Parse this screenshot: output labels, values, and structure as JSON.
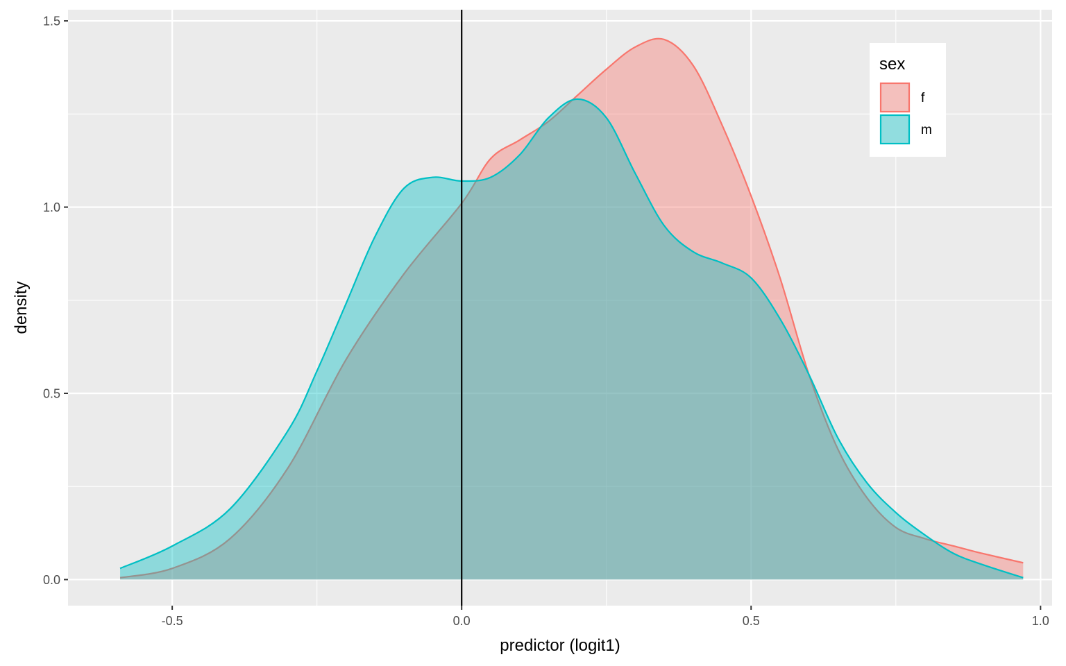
{
  "chart_data": {
    "type": "area",
    "xlabel": "predictor (logit1)",
    "ylabel": "density",
    "xlim": [
      -0.68,
      1.02
    ],
    "ylim": [
      -0.07,
      1.53
    ],
    "x_ticks": [
      -0.5,
      0.0,
      0.5,
      1.0
    ],
    "x_tick_labels": [
      "-0.5",
      "0.0",
      "0.5",
      "1.0"
    ],
    "y_ticks": [
      0.0,
      0.5,
      1.0,
      1.5
    ],
    "y_tick_labels": [
      "0.0",
      "0.5",
      "1.0",
      "1.5"
    ],
    "grid": true,
    "vline": 0.0,
    "legend": {
      "title": "sex",
      "placement": "top-right"
    },
    "series": [
      {
        "name": "f",
        "color": "#F8766D",
        "x": [
          -0.59,
          -0.5,
          -0.4,
          -0.3,
          -0.2,
          -0.1,
          0.0,
          0.05,
          0.1,
          0.15,
          0.2,
          0.25,
          0.3,
          0.35,
          0.4,
          0.45,
          0.5,
          0.55,
          0.6,
          0.65,
          0.7,
          0.75,
          0.8,
          0.85,
          0.9,
          0.97
        ],
        "y": [
          0.005,
          0.03,
          0.11,
          0.3,
          0.59,
          0.82,
          1.01,
          1.13,
          1.18,
          1.23,
          1.3,
          1.37,
          1.43,
          1.45,
          1.38,
          1.22,
          1.03,
          0.81,
          0.55,
          0.35,
          0.22,
          0.14,
          0.11,
          0.09,
          0.07,
          0.045
        ]
      },
      {
        "name": "m",
        "color": "#00BFC4",
        "x": [
          -0.59,
          -0.5,
          -0.4,
          -0.3,
          -0.25,
          -0.2,
          -0.15,
          -0.1,
          -0.05,
          0.0,
          0.05,
          0.1,
          0.15,
          0.2,
          0.25,
          0.3,
          0.35,
          0.4,
          0.45,
          0.5,
          0.55,
          0.6,
          0.65,
          0.7,
          0.75,
          0.8,
          0.85,
          0.9,
          0.97
        ],
        "y": [
          0.03,
          0.09,
          0.19,
          0.4,
          0.56,
          0.74,
          0.92,
          1.05,
          1.08,
          1.07,
          1.08,
          1.14,
          1.24,
          1.29,
          1.24,
          1.09,
          0.95,
          0.88,
          0.85,
          0.81,
          0.7,
          0.55,
          0.38,
          0.26,
          0.18,
          0.12,
          0.07,
          0.04,
          0.005
        ]
      }
    ]
  }
}
